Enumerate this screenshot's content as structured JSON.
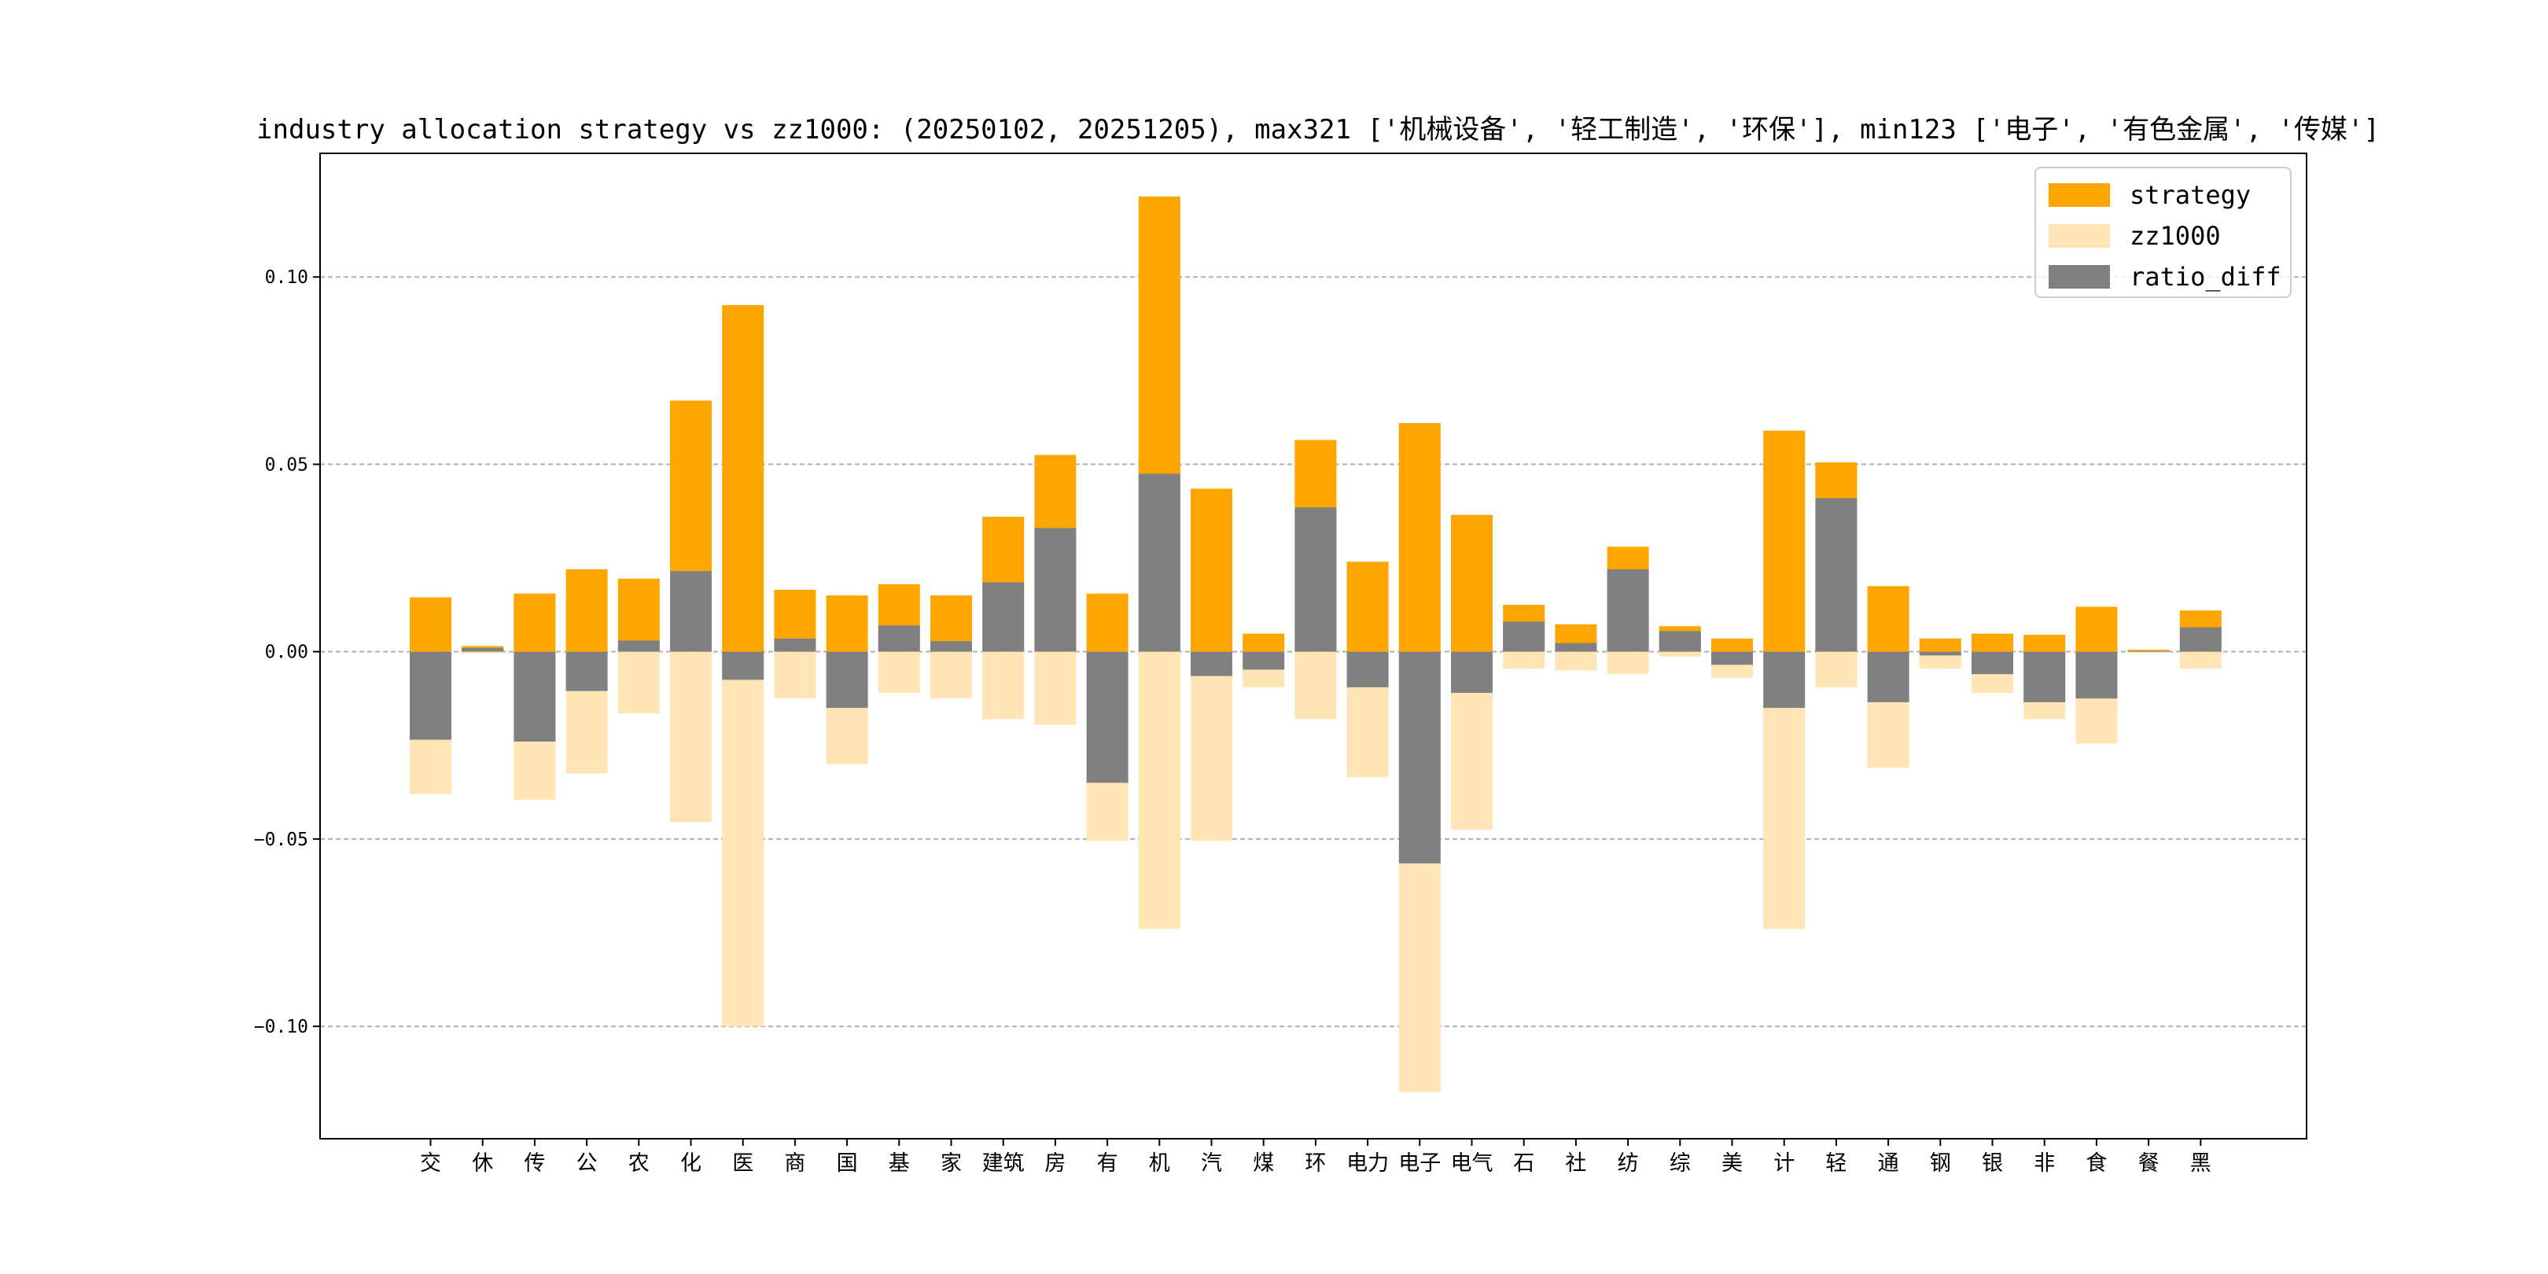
{
  "chart_data": {
    "type": "bar",
    "title": "industry allocation strategy vs zz1000: (20250102, 20251205), max321 ['机械设备', '轻工制造', '环保'], min123 ['电子', '有色金属', '传媒']",
    "xlabel": "",
    "ylabel": "",
    "ylim": [
      -0.13,
      0.133
    ],
    "yticks": [
      -0.1,
      -0.05,
      0.0,
      0.05,
      0.1
    ],
    "ytick_labels": [
      "−0.10",
      "−0.05",
      "0.00",
      "0.05",
      "0.10"
    ],
    "grid": "horizontal dashed",
    "legend_position": "top-right",
    "categories": [
      "交",
      "休",
      "传",
      "公",
      "农",
      "化",
      "医",
      "商",
      "国",
      "基",
      "家",
      "建筑",
      "房",
      "有",
      "机",
      "汽",
      "煤",
      "环",
      "电力",
      "电子",
      "电气",
      "石",
      "社",
      "纺",
      "综",
      "美",
      "计",
      "轻",
      "通",
      "钢",
      "银",
      "非",
      "食",
      "餐",
      "黑"
    ],
    "series": [
      {
        "name": "strategy",
        "color": "#FFA500",
        "values": [
          0.0145,
          0.0015,
          0.0155,
          0.022,
          0.0195,
          0.067,
          0.0925,
          0.0165,
          0.015,
          0.018,
          0.015,
          0.036,
          0.0525,
          0.0155,
          0.1215,
          0.0435,
          0.0048,
          0.0565,
          0.024,
          0.061,
          0.0365,
          0.0125,
          0.0073,
          0.028,
          0.0068,
          0.0035,
          0.059,
          0.0505,
          0.0175,
          0.0035,
          0.0048,
          0.0045,
          0.012,
          0.0005,
          0.011
        ]
      },
      {
        "name": "zz1000",
        "color": "#FFE4B5",
        "values": [
          -0.038,
          -0.0005,
          -0.0395,
          -0.0325,
          -0.0165,
          -0.0455,
          -0.1,
          -0.0125,
          -0.03,
          -0.011,
          -0.0125,
          -0.018,
          -0.0195,
          -0.0505,
          -0.074,
          -0.0505,
          -0.0095,
          -0.018,
          -0.0335,
          -0.1175,
          -0.0475,
          -0.0045,
          -0.005,
          -0.006,
          -0.0013,
          -0.007,
          -0.074,
          -0.0095,
          -0.031,
          -0.0045,
          -0.011,
          -0.018,
          -0.0245,
          -0.0003,
          -0.0045
        ]
      },
      {
        "name": "ratio_diff",
        "color": "#808080",
        "values": [
          -0.0235,
          0.001,
          -0.024,
          -0.0105,
          0.003,
          0.0215,
          -0.0075,
          0.0035,
          -0.015,
          0.007,
          0.0028,
          0.0185,
          0.033,
          -0.035,
          0.0475,
          -0.0065,
          -0.0048,
          0.0385,
          -0.0095,
          -0.0565,
          -0.011,
          0.008,
          0.0023,
          0.022,
          0.0055,
          -0.0035,
          -0.015,
          0.041,
          -0.0135,
          -0.001,
          -0.006,
          -0.0135,
          -0.0125,
          0.0002,
          0.0065
        ]
      }
    ]
  }
}
